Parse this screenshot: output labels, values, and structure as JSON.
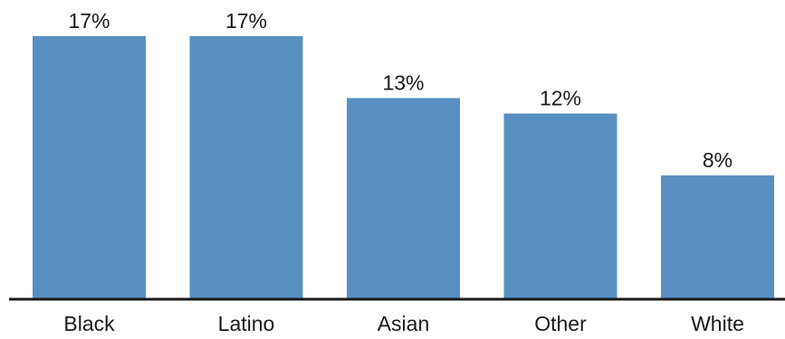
{
  "chart_data": {
    "type": "bar",
    "categories": [
      "Black",
      "Latino",
      "Asian",
      "Other",
      "White"
    ],
    "values": [
      17,
      17,
      13,
      12,
      8
    ],
    "value_labels": [
      "17%",
      "17%",
      "13%",
      "12%",
      "8%"
    ],
    "title": "",
    "xlabel": "",
    "ylabel": "",
    "ylim": [
      0,
      17
    ],
    "grid": false,
    "legend": "none",
    "colors": {
      "bar": "#5790c0",
      "axis": "#1a1a1a",
      "text": "#1a1a1a"
    }
  }
}
